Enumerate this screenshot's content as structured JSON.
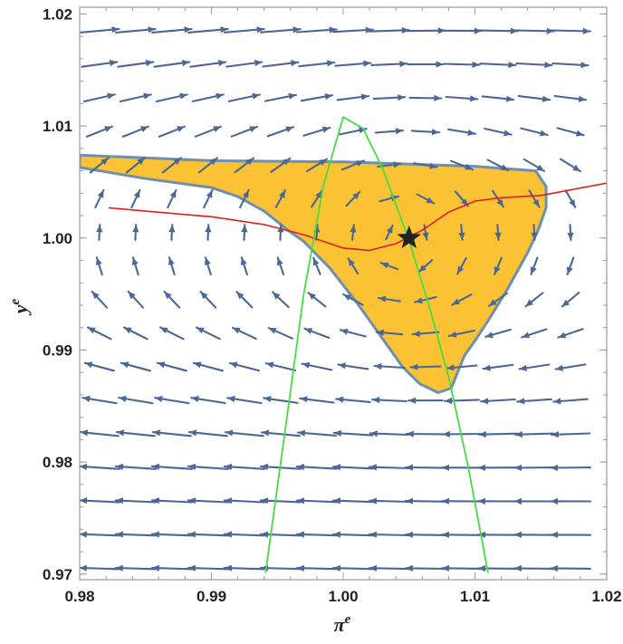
{
  "chart_data": {
    "type": "vector-field",
    "title": "",
    "xlabel": {
      "base": "π",
      "sup": "e"
    },
    "ylabel": {
      "base": "y",
      "sup": "e"
    },
    "xlim": [
      0.98,
      1.02
    ],
    "ylim": [
      0.9695,
      1.0206
    ],
    "xticks": [
      "0.98",
      "0.99",
      "1.00",
      "1.01",
      "1.02"
    ],
    "yticks": [
      "0.97",
      "0.98",
      "0.99",
      "1.00",
      "1.01",
      "1.02"
    ],
    "grid": false,
    "colors": {
      "arrow": "#4a6896",
      "region_fill": "#fbc233",
      "region_edge": "#6d8fb2",
      "red_curve": "#dd2020",
      "green_curve": "#44dd44",
      "star": "#222222",
      "frame": "#999999"
    },
    "region": [
      [
        0.98,
        1.0074
      ],
      [
        0.99,
        1.0069
      ],
      [
        1.0,
        1.0068
      ],
      [
        1.01,
        1.0064
      ],
      [
        1.0146,
        1.006
      ],
      [
        1.0154,
        1.0046
      ],
      [
        1.0154,
        1.0027
      ],
      [
        1.0148,
        1.0007
      ],
      [
        1.014,
        0.9987
      ],
      [
        1.0125,
        0.9955
      ],
      [
        1.0112,
        0.993
      ],
      [
        1.0101,
        0.991
      ],
      [
        1.0092,
        0.9895
      ],
      [
        1.0082,
        0.9866
      ],
      [
        1.0072,
        0.9862
      ],
      [
        1.0058,
        0.987
      ],
      [
        1.0045,
        0.9885
      ],
      [
        1.003,
        0.991
      ],
      [
        1.001,
        0.9943
      ],
      [
        0.999,
        0.9973
      ],
      [
        0.997,
        0.9997
      ],
      [
        0.9958,
        1.0007
      ],
      [
        0.994,
        1.0024
      ],
      [
        0.992,
        1.0037
      ],
      [
        0.99,
        1.0045
      ],
      [
        0.985,
        1.0053
      ],
      [
        0.98,
        1.0063
      ]
    ],
    "red_curve": [
      [
        0.9822,
        1.0027
      ],
      [
        0.985,
        1.0024
      ],
      [
        0.99,
        1.0019
      ],
      [
        0.994,
        1.0012
      ],
      [
        0.997,
        1.0003
      ],
      [
        1.0,
        0.9991
      ],
      [
        1.002,
        0.9989
      ],
      [
        1.004,
        0.9995
      ],
      [
        1.006,
        1.0007
      ],
      [
        1.008,
        1.0023
      ],
      [
        1.01,
        1.0033
      ],
      [
        1.012,
        1.0036
      ],
      [
        1.015,
        1.0038
      ],
      [
        1.02,
        1.0049
      ]
    ],
    "green_curve": [
      [
        0.9941,
        0.9701
      ],
      [
        0.9955,
        0.982
      ],
      [
        0.997,
        0.995
      ],
      [
        0.9985,
        1.0047
      ],
      [
        1.0,
        1.0108
      ],
      [
        1.0015,
        1.0098
      ],
      [
        1.003,
        1.0062
      ],
      [
        1.005,
        0.9998
      ],
      [
        1.0065,
        0.994
      ],
      [
        1.008,
        0.9876
      ],
      [
        1.0095,
        0.9795
      ],
      [
        1.011,
        0.9701
      ]
    ],
    "star": {
      "x": 1.005,
      "y": 1.0
    }
  }
}
